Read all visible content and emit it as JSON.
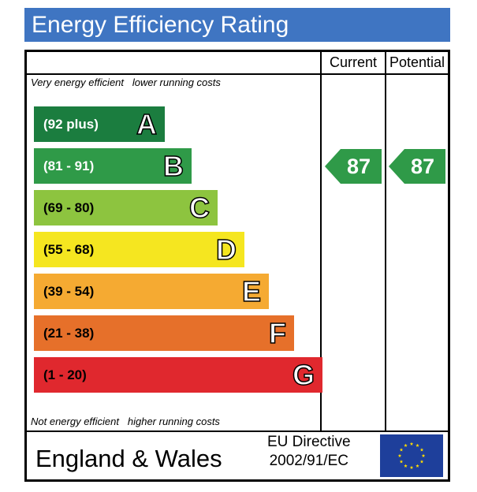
{
  "title": "Energy Efficiency Rating",
  "columns": {
    "current": "Current",
    "potential": "Potential"
  },
  "captions": {
    "top_left": "Very energy efficient",
    "top_right": "lower running costs",
    "bottom_left": "Not energy efficient",
    "bottom_right": "higher running costs"
  },
  "bands": [
    {
      "range": "(92 plus)",
      "letter": "A",
      "color": "#1b7d3f",
      "text_color": "#ffffff"
    },
    {
      "range": "(81 - 91)",
      "letter": "B",
      "color": "#2f9a48",
      "text_color": "#ffffff"
    },
    {
      "range": "(69 - 80)",
      "letter": "C",
      "color": "#8dc43f",
      "text_color": "#000000"
    },
    {
      "range": "(55 - 68)",
      "letter": "D",
      "color": "#f5e620",
      "text_color": "#000000"
    },
    {
      "range": "(39 - 54)",
      "letter": "E",
      "color": "#f5aa32",
      "text_color": "#000000"
    },
    {
      "range": "(21 - 38)",
      "letter": "F",
      "color": "#e6702a",
      "text_color": "#000000"
    },
    {
      "range": "(1 - 20)",
      "letter": "G",
      "color": "#e0282e",
      "text_color": "#000000"
    }
  ],
  "current": {
    "value": "87",
    "band": "B",
    "color": "#2f9a48"
  },
  "potential": {
    "value": "87",
    "band": "B",
    "color": "#2f9a48"
  },
  "footer": {
    "country": "England & Wales",
    "directive_line1": "EU Directive",
    "directive_line2": "2002/91/EC",
    "flag_color": "#1e3f9b",
    "star_color": "#ffdd00"
  }
}
